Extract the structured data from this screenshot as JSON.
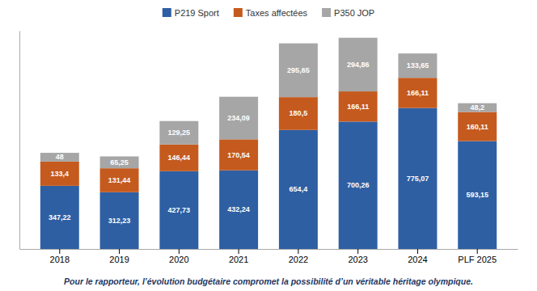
{
  "chart_data": {
    "type": "bar",
    "stacked": true,
    "categories": [
      "2018",
      "2019",
      "2020",
      "2021",
      "2022",
      "2023",
      "2024",
      "PLF 2025"
    ],
    "series": [
      {
        "name": "P219 Sport",
        "color": "#2E5FA3",
        "values": [
          347.22,
          312.23,
          427.73,
          432.24,
          654.4,
          700.26,
          775.07,
          593.15
        ],
        "value_labels": [
          "347,22",
          "312,23",
          "427,73",
          "432,24",
          "654,4",
          "700,26",
          "775,07",
          "593,15"
        ]
      },
      {
        "name": "Taxes affectées",
        "color": "#C55A1E",
        "values": [
          133.4,
          131.44,
          146.44,
          170.54,
          180.5,
          166.11,
          166.11,
          160.11
        ],
        "value_labels": [
          "133,4",
          "131,44",
          "146,44",
          "170,54",
          "180,5",
          "166,11",
          "166,11",
          "160,11"
        ]
      },
      {
        "name": "P350 JOP",
        "color": "#A6A6A6",
        "values": [
          48.0,
          65.25,
          129.25,
          234.09,
          295.65,
          294.86,
          133.65,
          48.2
        ],
        "value_labels": [
          "48",
          "65,25",
          "129,25",
          "234,09",
          "295,65",
          "294,86",
          "133,65",
          "48,2"
        ]
      }
    ],
    "ylim": [
      0,
      1200
    ],
    "data_labels": true,
    "tick_labels": "x",
    "legend": "top",
    "caption": "Pour le rapporteur, l’évolution budgétaire compromet la possibilité d’un véritable héritage olympique."
  }
}
